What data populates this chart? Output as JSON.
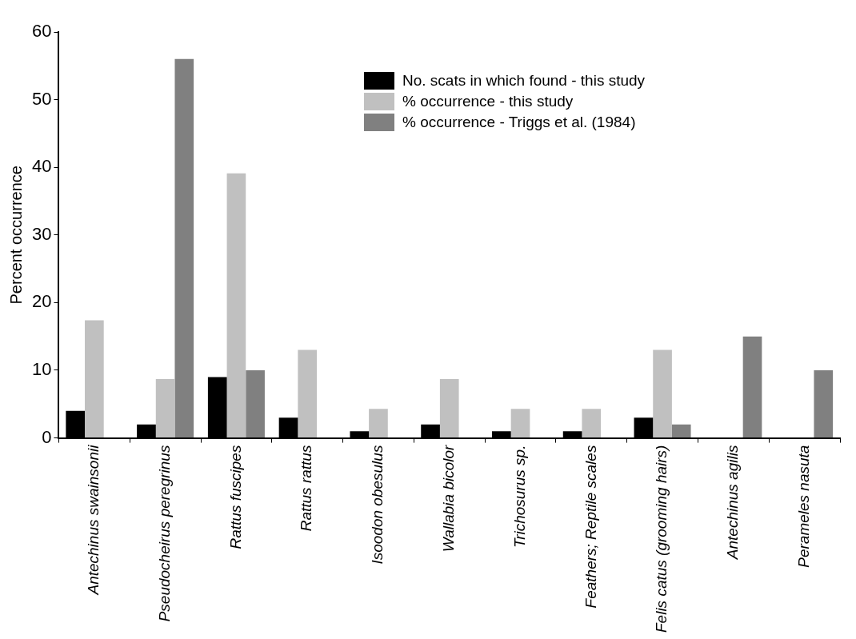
{
  "chart_data": {
    "type": "bar",
    "ylabel": "Percent occurrence",
    "categories": [
      "Antechinus swainsonii",
      "Pseudocheirus peregrinus",
      "Rattus fuscipes",
      "Rattus rattus",
      "Isoodon obesulus",
      "Wallabia bicolor",
      "Trichosurus sp.",
      "Feathers; Reptile scales",
      "Felis catus (grooming hairs)",
      "Antechinus agilis",
      "Perameles nasuta"
    ],
    "series": [
      {
        "name": "No. scats in which found - this study",
        "color": "#000000",
        "values": [
          4,
          2,
          9,
          3,
          1,
          2,
          1,
          1,
          3,
          null,
          null
        ]
      },
      {
        "name": "% occurrence - this study",
        "color": "#c0c0c0",
        "values": [
          17.4,
          8.7,
          39.1,
          13.0,
          4.3,
          8.7,
          4.3,
          4.3,
          13.0,
          null,
          null
        ]
      },
      {
        "name": "% occurrence - Triggs et al. (1984)",
        "color": "#808080",
        "values": [
          null,
          56,
          10,
          null,
          null,
          null,
          null,
          null,
          2,
          15,
          10
        ]
      }
    ],
    "ylim": [
      0,
      60
    ],
    "yticks": [
      0,
      10,
      20,
      30,
      40,
      50,
      60
    ],
    "grid": false,
    "legend": "top right"
  }
}
